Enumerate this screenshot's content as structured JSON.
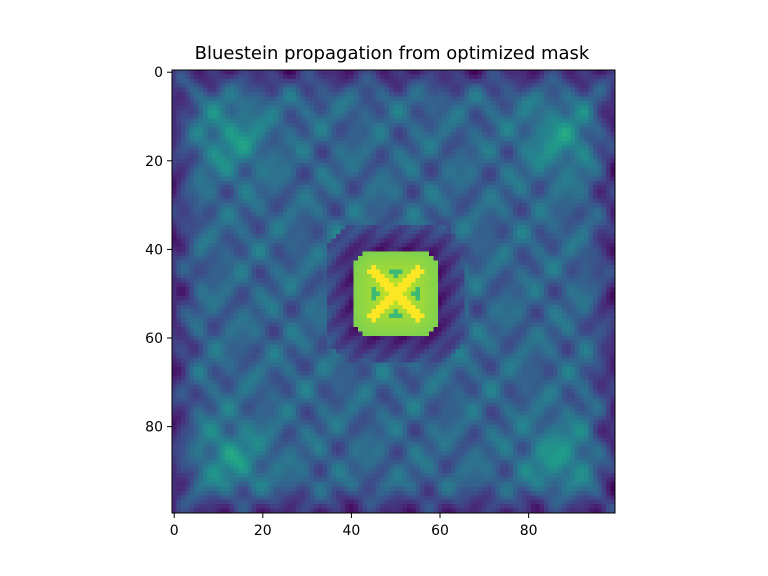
{
  "chart_data": {
    "type": "heatmap",
    "title": "Bluestein propagation from optimized mask",
    "xlabel": "",
    "ylabel": "",
    "grid_size": [
      100,
      100
    ],
    "xlim": [
      -0.5,
      99.5
    ],
    "ylim": [
      99.5,
      -0.5
    ],
    "x_ticks": [
      0,
      20,
      40,
      60,
      80
    ],
    "y_ticks": [
      0,
      20,
      40,
      60,
      80
    ],
    "colormap": "viridis",
    "value_range": [
      0,
      1
    ],
    "grid": false,
    "features": {
      "central_spot": {
        "center": [
          50,
          50
        ],
        "half_width": 10,
        "intensity": 0.92,
        "inner_cross_intensity": 1.0
      },
      "dark_ring_intensity": 0.08,
      "background_intensity": 0.32,
      "corner_glow": {
        "centers": [
          [
            13,
            15
          ],
          [
            87,
            15
          ],
          [
            13,
            87
          ],
          [
            87,
            87
          ]
        ],
        "intensity": 0.5
      }
    }
  }
}
